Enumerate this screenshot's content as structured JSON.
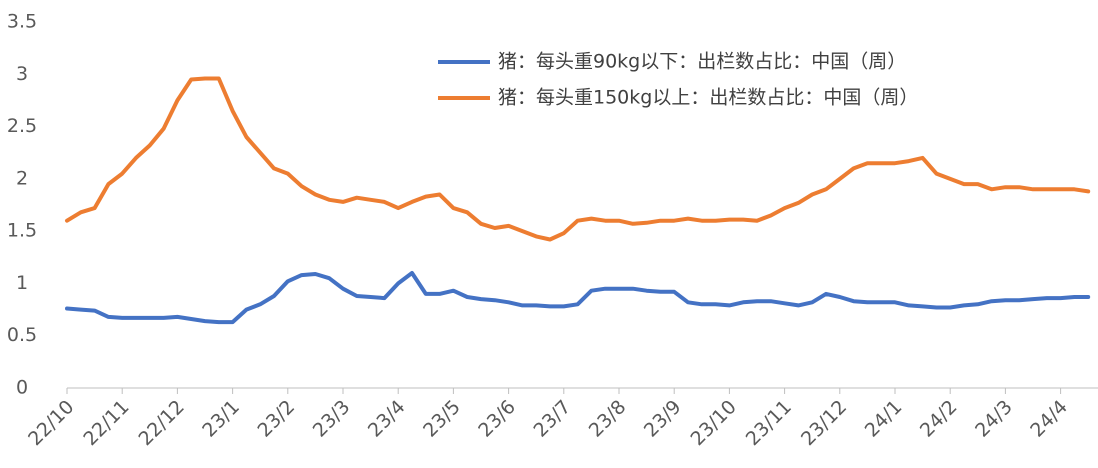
{
  "chart_data": {
    "type": "line",
    "categories": [
      "22/10",
      null,
      null,
      null,
      "22/11",
      null,
      null,
      null,
      "22/12",
      null,
      null,
      null,
      "23/1",
      null,
      null,
      null,
      "23/2",
      null,
      null,
      null,
      "23/3",
      null,
      null,
      null,
      "23/4",
      null,
      null,
      null,
      "23/5",
      null,
      null,
      null,
      "23/6",
      null,
      null,
      null,
      "23/7",
      null,
      null,
      null,
      "23/8",
      null,
      null,
      null,
      "23/9",
      null,
      null,
      null,
      "23/10",
      null,
      null,
      null,
      "23/11",
      null,
      null,
      null,
      "23/12",
      null,
      null,
      null,
      "24/1",
      null,
      null,
      null,
      "24/2",
      null,
      null,
      null,
      "24/3",
      null,
      null,
      null,
      "24/4",
      null,
      null
    ],
    "series": [
      {
        "name": "猪：每头重90kg以下：出栏数占比：中国（周）",
        "color": "#4472c4",
        "values": [
          0.76,
          0.75,
          0.74,
          0.68,
          0.67,
          0.67,
          0.67,
          0.67,
          0.68,
          0.66,
          0.64,
          0.63,
          0.63,
          0.75,
          0.8,
          0.88,
          1.02,
          1.08,
          1.09,
          1.05,
          0.95,
          0.88,
          0.87,
          0.86,
          1.0,
          1.1,
          0.9,
          0.9,
          0.93,
          0.87,
          0.85,
          0.84,
          0.82,
          0.79,
          0.79,
          0.78,
          0.78,
          0.8,
          0.93,
          0.95,
          0.95,
          0.95,
          0.93,
          0.92,
          0.92,
          0.82,
          0.8,
          0.8,
          0.79,
          0.82,
          0.83,
          0.83,
          0.81,
          0.79,
          0.82,
          0.9,
          0.87,
          0.83,
          0.82,
          0.82,
          0.82,
          0.79,
          0.78,
          0.77,
          0.77,
          0.79,
          0.8,
          0.83,
          0.84,
          0.84,
          0.85,
          0.86,
          0.86,
          0.87,
          0.87
        ]
      },
      {
        "name": "猪：每头重150kg以上：出栏数占比：中国（周）",
        "color": "#ed7d31",
        "values": [
          1.6,
          1.68,
          1.72,
          1.95,
          2.05,
          2.2,
          2.32,
          2.48,
          2.75,
          2.95,
          2.96,
          2.96,
          2.65,
          2.4,
          2.25,
          2.1,
          2.05,
          1.93,
          1.85,
          1.8,
          1.78,
          1.82,
          1.8,
          1.78,
          1.72,
          1.78,
          1.83,
          1.85,
          1.72,
          1.68,
          1.57,
          1.53,
          1.55,
          1.5,
          1.45,
          1.42,
          1.48,
          1.6,
          1.62,
          1.6,
          1.6,
          1.57,
          1.58,
          1.6,
          1.6,
          1.62,
          1.6,
          1.6,
          1.61,
          1.61,
          1.6,
          1.65,
          1.72,
          1.77,
          1.85,
          1.9,
          2.0,
          2.1,
          2.15,
          2.15,
          2.15,
          2.17,
          2.2,
          2.05,
          2.0,
          1.95,
          1.95,
          1.9,
          1.92,
          1.92,
          1.9,
          1.9,
          1.9,
          1.9,
          1.88
        ]
      }
    ],
    "ylim": [
      0,
      3.5
    ],
    "yticks": [
      0,
      0.5,
      1,
      1.5,
      2,
      2.5,
      3,
      3.5
    ],
    "grid": false,
    "legend": "top-right"
  }
}
